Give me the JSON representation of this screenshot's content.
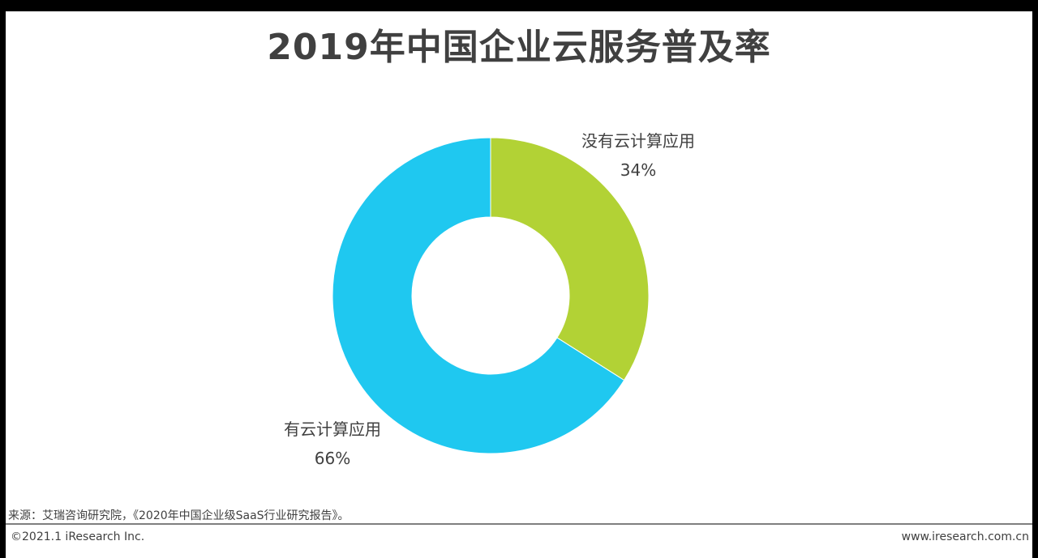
{
  "chart_data": {
    "type": "pie",
    "title": "2019年中国企业云服务普及率",
    "donut": true,
    "slices": [
      {
        "label": "没有云计算应用",
        "value": 34,
        "value_label": "34%",
        "color": "#b2d235"
      },
      {
        "label": "有云计算应用",
        "value": 66,
        "value_label": "66%",
        "color": "#1fc8f0"
      }
    ]
  },
  "footer": {
    "source": "来源：艾瑞咨询研究院，《2020年中国企业级SaaS行业研究报告》。",
    "copyright": "©2021.1 iResearch Inc.",
    "website": "www.iresearch.com.cn"
  }
}
